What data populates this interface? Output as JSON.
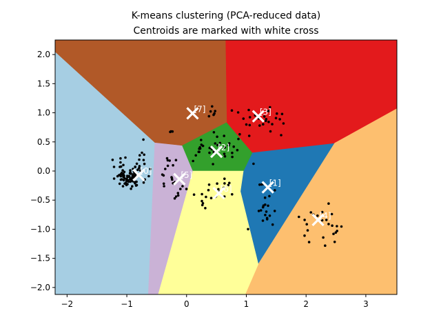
{
  "chart_data": {
    "type": "scatter",
    "title": "K-means clustering (PCA-reduced data)",
    "subtitle": "Centroids are marked with white cross",
    "xlabel": "",
    "ylabel": "",
    "xlim": [
      -2.2,
      3.52
    ],
    "ylim": [
      -2.12,
      2.25
    ],
    "xticks": [
      -2,
      -1,
      0,
      1,
      2,
      3
    ],
    "xtick_labels": [
      "−2",
      "−1",
      "0",
      "1",
      "2",
      "3"
    ],
    "yticks": [
      -2.0,
      -1.5,
      -1.0,
      -0.5,
      0.0,
      0.5,
      1.0,
      1.5,
      2.0
    ],
    "ytick_labels": [
      "−2.0",
      "−1.5",
      "−1.0",
      "−0.5",
      "0.0",
      "0.5",
      "1.0",
      "1.5",
      "2.0"
    ],
    "grid": false,
    "regions": [
      {
        "cluster": 0,
        "color": "#a6cee3",
        "polygon": [
          [
            -2.2,
            2.25
          ],
          [
            -2.2,
            -2.12
          ],
          [
            -0.64,
            -2.12
          ],
          [
            -0.53,
            0.49
          ],
          [
            -2.2,
            2.05
          ]
        ]
      },
      {
        "cluster": 1,
        "color": "#1f78b4",
        "polygon": [
          [
            0.95,
            0.0
          ],
          [
            1.1,
            0.32
          ],
          [
            2.48,
            0.48
          ],
          [
            1.2,
            -1.6
          ],
          [
            0.9,
            -0.35
          ]
        ]
      },
      {
        "cluster": 2,
        "color": "#33a02c",
        "polygon": [
          [
            -0.08,
            0.44
          ],
          [
            0.67,
            0.84
          ],
          [
            1.1,
            0.32
          ],
          [
            0.95,
            0.0
          ],
          [
            0.65,
            0.0
          ],
          [
            0.3,
            -0.1
          ],
          [
            0.1,
            0.0
          ]
        ]
      },
      {
        "cluster": 3,
        "color": "#e31a1c",
        "polygon": [
          [
            0.65,
            2.25
          ],
          [
            3.52,
            2.25
          ],
          [
            3.52,
            1.07
          ],
          [
            2.48,
            0.48
          ],
          [
            1.1,
            0.32
          ],
          [
            0.67,
            0.84
          ]
        ]
      },
      {
        "cluster": 4,
        "color": "#fdbf6f",
        "polygon": [
          [
            3.52,
            1.07
          ],
          [
            3.52,
            -2.12
          ],
          [
            0.98,
            -2.12
          ],
          [
            1.2,
            -1.6
          ],
          [
            2.48,
            0.48
          ]
        ]
      },
      {
        "cluster": 5,
        "color": "#ffff99",
        "polygon": [
          [
            0.28,
            0.0
          ],
          [
            0.95,
            0.0
          ],
          [
            0.9,
            -0.35
          ],
          [
            1.2,
            -1.6
          ],
          [
            0.98,
            -2.12
          ],
          [
            -0.48,
            -2.12
          ],
          [
            0.1,
            0.0
          ]
        ]
      },
      {
        "cluster": 6,
        "color": "#cab2d6",
        "polygon": [
          [
            -0.53,
            0.49
          ],
          [
            -0.08,
            0.44
          ],
          [
            0.1,
            0.0
          ],
          [
            -0.48,
            -2.12
          ],
          [
            -0.64,
            -2.12
          ]
        ]
      },
      {
        "cluster": 7,
        "color": "#b15928",
        "polygon": [
          [
            -2.2,
            2.25
          ],
          [
            0.65,
            2.25
          ],
          [
            0.67,
            0.84
          ],
          [
            -0.08,
            0.44
          ],
          [
            -0.53,
            0.49
          ],
          [
            -2.2,
            2.05
          ]
        ]
      }
    ],
    "centroids": [
      {
        "label": "[0]",
        "x": -0.8,
        "y": -0.07
      },
      {
        "label": "[1]",
        "x": 1.36,
        "y": -0.28
      },
      {
        "label": "[2]",
        "x": 0.5,
        "y": 0.33
      },
      {
        "label": "[3]",
        "x": 1.2,
        "y": 0.94
      },
      {
        "label": "[4]",
        "x": 2.2,
        "y": -0.84
      },
      {
        "label": "[5]",
        "x": -0.12,
        "y": -0.14
      },
      {
        "label": "[6]",
        "x": 0.54,
        "y": -0.38
      },
      {
        "label": "[7]",
        "x": 0.1,
        "y": 0.99
      }
    ],
    "point_groups": [
      {
        "cx": -0.95,
        "cy": -0.1,
        "sx": 0.14,
        "sy": 0.1,
        "n": 80
      },
      {
        "cx": -1.1,
        "cy": 0.05,
        "sx": 0.06,
        "sy": 0.12,
        "n": 8
      },
      {
        "cx": -0.75,
        "cy": 0.25,
        "sx": 0.06,
        "sy": 0.15,
        "n": 6
      },
      {
        "cx": -0.28,
        "cy": -0.1,
        "sx": 0.12,
        "sy": 0.14,
        "n": 12
      },
      {
        "cx": -0.2,
        "cy": -0.42,
        "sx": 0.05,
        "sy": 0.06,
        "n": 5
      },
      {
        "cx": -0.3,
        "cy": 0.12,
        "sx": 0.07,
        "sy": 0.08,
        "n": 5
      },
      {
        "cx": 0.4,
        "cy": 0.38,
        "sx": 0.2,
        "sy": 0.16,
        "n": 22
      },
      {
        "cx": 0.75,
        "cy": 0.45,
        "sx": 0.14,
        "sy": 0.12,
        "n": 10
      },
      {
        "cx": 0.35,
        "cy": -0.45,
        "sx": 0.1,
        "sy": 0.12,
        "n": 12
      },
      {
        "cx": 0.65,
        "cy": -0.28,
        "sx": 0.09,
        "sy": 0.1,
        "n": 10
      },
      {
        "cx": 1.2,
        "cy": 0.9,
        "sx": 0.22,
        "sy": 0.12,
        "n": 18
      },
      {
        "cx": 0.45,
        "cy": 1.0,
        "sx": 0.04,
        "sy": 0.08,
        "n": 6
      },
      {
        "cx": 1.45,
        "cy": 0.85,
        "sx": 0.1,
        "sy": 0.1,
        "n": 8
      },
      {
        "cx": 1.3,
        "cy": -0.3,
        "sx": 0.1,
        "sy": 0.2,
        "n": 14
      },
      {
        "cx": 1.35,
        "cy": -0.78,
        "sx": 0.05,
        "sy": 0.06,
        "n": 8
      },
      {
        "cx": 2.2,
        "cy": -0.85,
        "sx": 0.18,
        "sy": 0.18,
        "n": 18
      },
      {
        "cx": 2.5,
        "cy": -1.05,
        "sx": 0.05,
        "sy": 0.08,
        "n": 6
      },
      {
        "cx": -0.25,
        "cy": 0.68,
        "sx": 0.03,
        "sy": 0.03,
        "n": 3
      }
    ]
  }
}
